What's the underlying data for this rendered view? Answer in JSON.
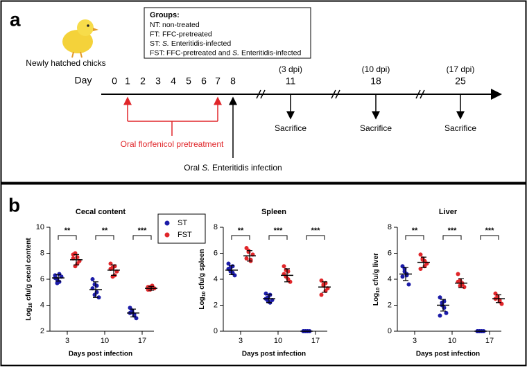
{
  "diagram": {
    "label": "a",
    "chick_caption": "Newly hatched chicks",
    "groups_title": "Groups:",
    "groups": [
      {
        "code": "NT:",
        "parts": [
          {
            "t": "non-treated"
          }
        ]
      },
      {
        "code": "FT:",
        "parts": [
          {
            "t": "FFC-pretreated"
          }
        ]
      },
      {
        "code": "ST:",
        "parts": [
          {
            "t": "S.",
            "italic": true
          },
          {
            "t": " Enteritidis-infected"
          }
        ]
      },
      {
        "code": "FST:",
        "parts": [
          {
            "t": "FFC-pretreated and "
          },
          {
            "t": "S.",
            "italic": true
          },
          {
            "t": " Enteritidis-infected"
          }
        ]
      }
    ],
    "day_label": "Day",
    "days": [
      0,
      1,
      2,
      3,
      4,
      5,
      6,
      7,
      8
    ],
    "sacrifice_days": [
      {
        "day": 11,
        "dpi": "(3 dpi)",
        "label": "Sacrifice"
      },
      {
        "day": 18,
        "dpi": "(10 dpi)",
        "label": "Sacrifice"
      },
      {
        "day": 25,
        "dpi": "(17 dpi)",
        "label": "Sacrifice"
      }
    ],
    "pretreatment": "Oral florfenicol pretreatment",
    "infection": [
      {
        "t": "Oral "
      },
      {
        "t": "S.",
        "italic": true
      },
      {
        "t": " Enteritidis infection"
      }
    ]
  },
  "panel_b_label": "b",
  "chart_data": [
    {
      "type": "scatter",
      "title": "Cecal content",
      "xlabel": "Days post infection",
      "ylabel": {
        "base": "Log",
        "sub": "10",
        "rest": " cfu/g cecal content"
      },
      "categories": [
        "3",
        "10",
        "17"
      ],
      "ylim": [
        2,
        10
      ],
      "yticks": [
        2,
        4,
        6,
        8,
        10
      ],
      "annotations": [
        "**",
        "**",
        "***"
      ],
      "series": [
        {
          "name": "ST",
          "color": "#1c1ca8",
          "values": [
            [
              6.3,
              6.0,
              5.8,
              6.2,
              6.1,
              5.7,
              6.4
            ],
            [
              6.0,
              5.6,
              5.0,
              4.6,
              5.3,
              4.8,
              5.5
            ],
            [
              3.8,
              3.5,
              3.2,
              3.0,
              3.4,
              3.6,
              3.3
            ]
          ],
          "mean": [
            6.1,
            5.2,
            3.4
          ],
          "sd": [
            0.25,
            0.6,
            0.3
          ]
        },
        {
          "name": "FST",
          "color": "#e0262a",
          "values": [
            [
              7.9,
              8.0,
              7.2,
              7.4,
              7.6,
              7.0,
              7.7
            ],
            [
              7.2,
              6.9,
              6.3,
              6.6,
              6.8,
              6.2,
              7.0
            ],
            [
              5.4,
              5.2,
              5.5,
              5.3,
              5.2,
              5.4
            ]
          ],
          "mean": [
            7.5,
            6.7,
            5.3
          ],
          "sd": [
            0.4,
            0.4,
            0.15
          ]
        }
      ]
    },
    {
      "type": "scatter",
      "title": "Spleen",
      "xlabel": "Days post infection",
      "ylabel": {
        "base": "Log",
        "sub": "10",
        "rest": " cfu/g spleen"
      },
      "categories": [
        "3",
        "10",
        "17"
      ],
      "ylim": [
        0,
        8
      ],
      "yticks": [
        0,
        2,
        4,
        6,
        8
      ],
      "annotations": [
        "**",
        "***",
        "***"
      ],
      "series": [
        {
          "name": "ST",
          "color": "#1c1ca8",
          "values": [
            [
              5.2,
              4.9,
              4.5,
              4.3,
              4.8,
              4.6,
              5.0
            ],
            [
              2.9,
              2.6,
              2.2,
              2.4,
              2.5,
              2.3,
              2.8
            ],
            [
              0,
              0,
              0,
              0,
              0,
              0,
              0
            ]
          ],
          "mean": [
            4.7,
            2.5,
            0
          ],
          "sd": [
            0.35,
            0.3,
            0
          ]
        },
        {
          "name": "FST",
          "color": "#e0262a",
          "values": [
            [
              6.4,
              6.1,
              5.5,
              5.9,
              5.6,
              6.2,
              5.4
            ],
            [
              5.0,
              4.7,
              4.0,
              3.8,
              4.4,
              4.2,
              4.6
            ],
            [
              3.9,
              3.6,
              3.1,
              3.3,
              2.8,
              3.5,
              3.7
            ]
          ],
          "mean": [
            5.8,
            4.3,
            3.4
          ],
          "sd": [
            0.4,
            0.5,
            0.4
          ]
        }
      ]
    },
    {
      "type": "scatter",
      "title": "Liver",
      "xlabel": "Days post infection",
      "ylabel": {
        "base": "Log",
        "sub": "10",
        "rest": " cfu/g liver"
      },
      "categories": [
        "3",
        "10",
        "17"
      ],
      "ylim": [
        0,
        8
      ],
      "yticks": [
        0,
        2,
        4,
        6,
        8
      ],
      "annotations": [
        "**",
        "***",
        "***"
      ],
      "series": [
        {
          "name": "ST",
          "color": "#1c1ca8",
          "values": [
            [
              5.0,
              4.6,
              4.3,
              3.6,
              4.2,
              4.8,
              4.4
            ],
            [
              2.6,
              2.2,
              1.8,
              1.4,
              1.2,
              2.0,
              2.3
            ],
            [
              0,
              0,
              0,
              0,
              0,
              0,
              0
            ]
          ],
          "mean": [
            4.4,
            2.0,
            0
          ],
          "sd": [
            0.5,
            0.45,
            0
          ]
        },
        {
          "name": "FST",
          "color": "#e0262a",
          "values": [
            [
              5.9,
              5.6,
              5.0,
              5.2,
              4.8,
              5.5,
              5.4
            ],
            [
              4.4,
              3.9,
              3.6,
              3.4,
              3.8,
              3.5,
              3.7
            ],
            [
              2.9,
              2.7,
              2.3,
              2.1,
              2.5,
              2.6,
              2.4
            ]
          ],
          "mean": [
            5.3,
            3.7,
            2.5
          ],
          "sd": [
            0.4,
            0.35,
            0.3
          ]
        }
      ]
    }
  ]
}
